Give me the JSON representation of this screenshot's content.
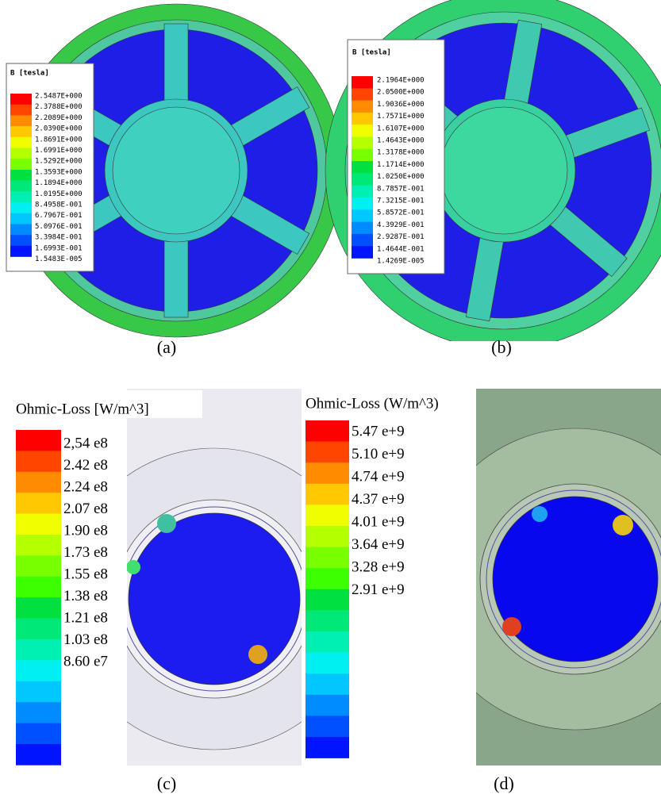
{
  "panels": [
    {
      "caption": "(a)",
      "legend": {
        "title": "B [tesla]",
        "labels": [
          "2.5487E+000",
          "2.3788E+000",
          "2.2089E+000",
          "2.0390E+000",
          "1.8691E+000",
          "1.6991E+000",
          "1.5292E+000",
          "1.3593E+000",
          "1.1894E+000",
          "1.0195E+000",
          "8.4958E-001",
          "6.7967E-001",
          "5.0976E-001",
          "3.3984E-001",
          "1.6993E-001",
          "1.5483E-005"
        ]
      }
    },
    {
      "caption": "(b)",
      "legend": {
        "title": "B [tesla]",
        "labels": [
          "2.1964E+000",
          "2.0500E+000",
          "1.9036E+000",
          "1.7571E+000",
          "1.6107E+000",
          "1.4643E+000",
          "1.3178E+000",
          "1.1714E+000",
          "1.0250E+000",
          "8.7857E-001",
          "7.3215E-001",
          "5.8572E-001",
          "4.3929E-001",
          "2.9287E-001",
          "1.4644E-001",
          "1.4269E-005"
        ]
      }
    },
    {
      "caption": "(c)",
      "legend": {
        "title": "Ohmic-Loss [W/m^3]",
        "labels": [
          "2,54 e8",
          "2.42 e8",
          "2.24 e8",
          "2.07 e8",
          "1.90 e8",
          "1.73 e8",
          "1.55 e8",
          "1.38 e8",
          "1.21 e8",
          "1.03 e8",
          "8.60 e7"
        ]
      }
    },
    {
      "caption": "(d)",
      "legend": {
        "title": "Ohmic-Loss (W/m^3)",
        "labels": [
          "5.47 e+9",
          "5.10 e+9",
          "4.74 e+9",
          "4.37 e+9",
          "4.01 e+9",
          "3.64 e+9",
          "3.28 e+9",
          "2.91 e+9"
        ]
      }
    }
  ]
}
